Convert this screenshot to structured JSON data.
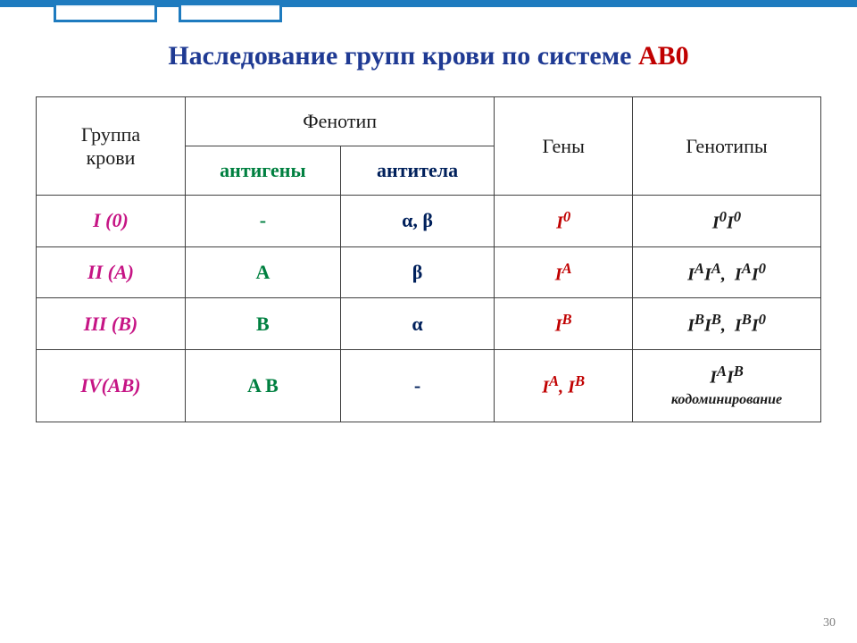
{
  "colors": {
    "border_top": "#1e7bbf",
    "tab_border": "#1e7bbf",
    "title": "#1f3a93",
    "accent_ab0": "#c00000",
    "cell_border": "#404040",
    "header_text": "#1a1a1a",
    "antigen": "#008040",
    "antibody": "#00205b",
    "group_col": "#c61585",
    "gene_col": "#c00000",
    "genotype_col": "#1a1a1a"
  },
  "title": {
    "prefix": "Наследование групп крови по системе ",
    "suffix": "AB0",
    "fontsize": 30
  },
  "table": {
    "headers": {
      "group": "Группа\nкрови",
      "phenotype": "Фенотип",
      "genes": "Гены",
      "genotypes": "Генотипы",
      "antigen": "антигены",
      "antibody": "антитела"
    },
    "rows": [
      {
        "group": "I (0)",
        "antigen": "-",
        "antibody": "α, β",
        "genes_html": "I<sup>0</sup>",
        "genotypes_html": "I<sup>0</sup>I<sup>0</sup>"
      },
      {
        "group": "II (A)",
        "antigen": "A",
        "antibody": "β",
        "genes_html": "I<sup>A</sup>",
        "genotypes_html": "I<sup>A</sup>I<sup>A</sup>,&nbsp;&nbsp;I<sup>A</sup>I<sup>0</sup>"
      },
      {
        "group": "III (B)",
        "antigen": "B",
        "antibody": "α",
        "genes_html": "I<sup>B</sup>",
        "genotypes_html": "I<sup>B</sup>I<sup>B</sup>,&nbsp;&nbsp;I<sup>B</sup>I<sup>0</sup>"
      },
      {
        "group": "IV(AB)",
        "antigen": "A B",
        "antibody": "-",
        "genes_html": "I<sup>A</sup>, I<sup>B</sup>",
        "genotypes_html": "I<sup>A</sup>I<sup>B</sup><br><span style='font-size:16px'>кодоминирование</span>"
      }
    ]
  },
  "slide_number": "30"
}
